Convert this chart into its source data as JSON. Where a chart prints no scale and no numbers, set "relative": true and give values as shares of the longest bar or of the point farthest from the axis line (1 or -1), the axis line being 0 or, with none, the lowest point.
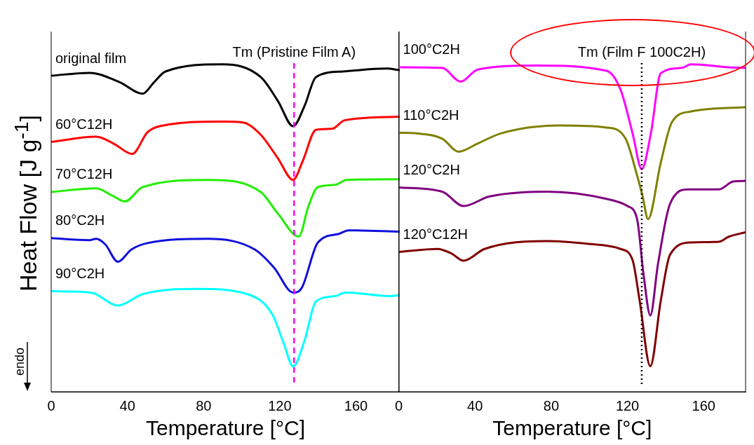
{
  "chart_data": [
    {
      "type": "line",
      "relative": true,
      "xlabel": "Temperature [°C]",
      "ylabel": "Heat Flow [J g$^{-1}$]",
      "xlim": [
        0,
        183
      ],
      "xticks": [
        0,
        40,
        80,
        120,
        160
      ],
      "marker": "none",
      "line_style": "solid",
      "annotations": [
        "endo"
      ],
      "ref_lines": [
        {
          "axis": "x",
          "value": 127.5,
          "label": "Tm (Pristine Film A)",
          "color": "#ff00ff",
          "line_style": "dashed"
        }
      ],
      "series": [
        {
          "name": "original film",
          "color": "#000000",
          "x": [
            0,
            20,
            36,
            48,
            54,
            60,
            90,
            110,
            119,
            127,
            133,
            139,
            153,
            176,
            183
          ],
          "values": [
            0.965,
            0.974,
            0.945,
            0.91,
            0.945,
            0.978,
            1,
            0.961,
            0.888,
            0.811,
            0.873,
            0.961,
            0.978,
            0.987,
            0.982
          ]
        },
        {
          "name": "60°C12H",
          "color": "#ff0000",
          "x": [
            0,
            23.6,
            33,
            42.5,
            50.5,
            57,
            90,
            101,
            110,
            119,
            127,
            132,
            139,
            147.5,
            154,
            183
          ],
          "values": [
            0.763,
            0.779,
            0.757,
            0.726,
            0.792,
            0.811,
            0.825,
            0.822,
            0.785,
            0.713,
            0.647,
            0.704,
            0.8,
            0.803,
            0.829,
            0.84
          ]
        },
        {
          "name": "70°C12H",
          "color": "#22ee00",
          "x": [
            0,
            23.6,
            32,
            38.7,
            48,
            82.6,
            110,
            119,
            130,
            135,
            140,
            149,
            155,
            183
          ],
          "values": [
            0.61,
            0.621,
            0.599,
            0.581,
            0.625,
            0.647,
            0.61,
            0.544,
            0.474,
            0.566,
            0.625,
            0.632,
            0.647,
            0.649
          ]
        },
        {
          "name": "80°C2H",
          "color": "#1010dd",
          "x": [
            0,
            20,
            23.6,
            28.4,
            35,
            42,
            50.5,
            82.6,
            107,
            117,
            127,
            131.6,
            140,
            151,
            156,
            183
          ],
          "values": [
            0.469,
            0.463,
            0.467,
            0.45,
            0.397,
            0.434,
            0.454,
            0.467,
            0.434,
            0.379,
            0.303,
            0.318,
            0.456,
            0.482,
            0.493,
            0.489
          ]
        },
        {
          "name": "90°C2H",
          "color": "#00ffff",
          "x": [
            0,
            21,
            35,
            48,
            77,
            103,
            116,
            122,
            127,
            133,
            139,
            149,
            154.5,
            178.5,
            183
          ],
          "values": [
            0.307,
            0.303,
            0.263,
            0.298,
            0.314,
            0.298,
            0.237,
            0.149,
            0.077,
            0.156,
            0.276,
            0.292,
            0.303,
            0.292,
            0.296
          ]
        }
      ]
    },
    {
      "type": "line",
      "relative": true,
      "xlabel": "Temperature [°C]",
      "xlim": [
        0,
        182
      ],
      "xticks": [
        0,
        40,
        80,
        120,
        160
      ],
      "marker": "none",
      "line_style": "solid",
      "ref_lines": [
        {
          "axis": "x",
          "value": 127.5,
          "label": "Tm (Film F 100C2H)",
          "color": "#000000",
          "line_style": "dotted"
        }
      ],
      "series": [
        {
          "name": "100°C2H",
          "color": "#ff00ff",
          "x": [
            0.6,
            22.8,
            32.5,
            41.4,
            72,
            109,
            116.4,
            122.7,
            127.5,
            132.3,
            137.5,
            148.6,
            153.4,
            173,
            182
          ],
          "values": [
            0.991,
            0.989,
            0.947,
            0.984,
            0.996,
            0.98,
            0.922,
            0.789,
            0.68,
            0.789,
            0.973,
            0.989,
            1,
            0.991,
            0.989
          ]
        },
        {
          "name": "110°C2H",
          "color": "#808000",
          "x": [
            0,
            9.2,
            22.8,
            31.4,
            41.4,
            53.6,
            84,
            109,
            119,
            125,
            128,
            130.8,
            137.5,
            143.4,
            153.4,
            182
          ],
          "values": [
            0.791,
            0.789,
            0.773,
            0.733,
            0.758,
            0.789,
            0.813,
            0.807,
            0.773,
            0.662,
            0.596,
            0.527,
            0.7,
            0.824,
            0.856,
            0.869
          ]
        },
        {
          "name": "120°C2H",
          "color": "#800080",
          "x": [
            0,
            22.8,
            34,
            47.3,
            78,
            109,
            120,
            125,
            128.6,
            132,
            136,
            142.3,
            152,
            168,
            175.5,
            182
          ],
          "values": [
            0.624,
            0.611,
            0.567,
            0.596,
            0.611,
            0.589,
            0.567,
            0.529,
            0.351,
            0.233,
            0.389,
            0.573,
            0.618,
            0.618,
            0.642,
            0.644
          ]
        },
        {
          "name": "120°C12H",
          "color": "#800000",
          "x": [
            0,
            20.3,
            27.7,
            34,
            45,
            78,
            100.5,
            116.4,
            122.7,
            126.4,
            132,
            137.5,
            142.3,
            153.4,
            168,
            173,
            182
          ],
          "values": [
            0.427,
            0.436,
            0.422,
            0.4,
            0.436,
            0.46,
            0.451,
            0.436,
            0.402,
            0.278,
            0.078,
            0.278,
            0.418,
            0.456,
            0.458,
            0.473,
            0.487
          ]
        }
      ]
    }
  ]
}
